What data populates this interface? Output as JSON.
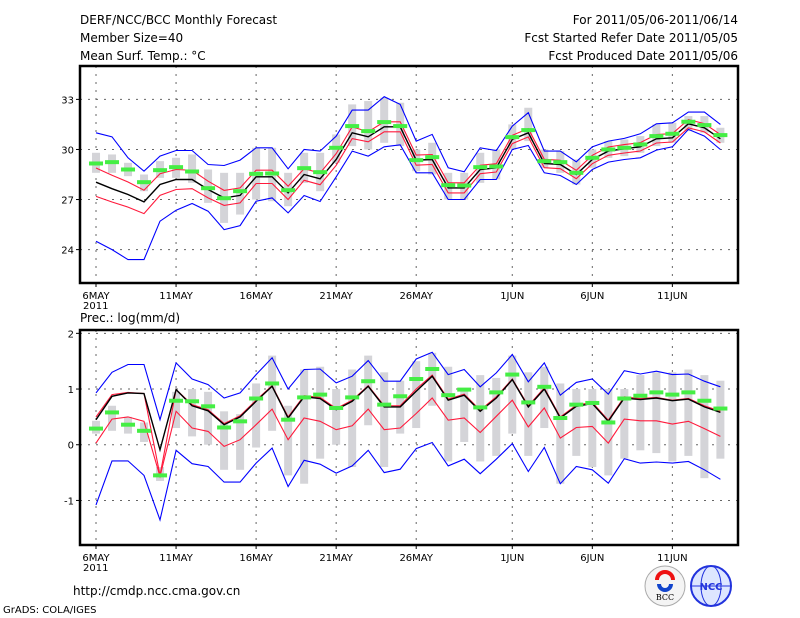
{
  "header": {
    "title": "DERF/NCC/BCC Monthly Forecast",
    "member_size": "Member Size=40",
    "variable": "Mean Surf. Temp.: °C",
    "period": "For 2011/05/06-2011/06/14",
    "started": "Fcst Started Refer Date 2011/05/05",
    "produced": "Fcst Produced Date 2011/05/06"
  },
  "footer": {
    "url": "http://cmdp.ncc.cma.gov.cn",
    "credit": "GrADS: COLA/IGES",
    "logo_bcc": "BCC",
    "logo_ncc": "NCC"
  },
  "colors": {
    "outer": "#0000ff",
    "inner": "#ff1a3c",
    "mean": "#000000",
    "marker": "#44ee44",
    "bar": "#d4d4d8",
    "grid": "#666666"
  },
  "chart_data": [
    {
      "type": "line",
      "title": "Mean Surf. Temp.: °C",
      "ylabel": "°C",
      "ylim": [
        22,
        35
      ],
      "xlim": [
        -1,
        40.1
      ],
      "yticks": [
        24,
        27,
        30,
        33
      ],
      "grid": true,
      "x_ticks": [
        {
          "day": 0,
          "label": "6MAY",
          "sub": "2011"
        },
        {
          "day": 5,
          "label": "11MAY"
        },
        {
          "day": 10,
          "label": "16MAY"
        },
        {
          "day": 15,
          "label": "21MAY"
        },
        {
          "day": 20,
          "label": "26MAY"
        },
        {
          "day": 26,
          "label": "1JUN"
        },
        {
          "day": 31,
          "label": "6JUN"
        },
        {
          "day": 36,
          "label": "11JUN"
        }
      ],
      "bars_hi": [
        29.8,
        29.7,
        29.2,
        28.5,
        29.3,
        29.5,
        29.7,
        28.8,
        28.6,
        28.6,
        30.1,
        30.1,
        28.6,
        29.8,
        29.8,
        30.9,
        32.7,
        32.9,
        33.1,
        32.8,
        30.0,
        30.4,
        28.6,
        28.6,
        29.8,
        30.0,
        31.5,
        32.5,
        30.0,
        29.9,
        29.4,
        30.0,
        30.5,
        30.6,
        30.8,
        31.5,
        31.6,
        32.0,
        32.0,
        31.3
      ],
      "bars_lo": [
        28.6,
        28.6,
        28.4,
        27.5,
        28.3,
        28.3,
        28.0,
        26.8,
        25.6,
        26.1,
        27.0,
        26.9,
        26.6,
        28.0,
        27.5,
        29.2,
        30.2,
        30.0,
        30.4,
        30.2,
        28.7,
        28.5,
        27.0,
        27.0,
        28.0,
        28.2,
        30.0,
        30.5,
        28.9,
        28.6,
        27.9,
        28.9,
        29.5,
        29.6,
        29.8,
        30.2,
        30.4,
        31.1,
        31.0,
        30.4
      ],
      "markers": [
        29.16,
        29.24,
        28.8,
        28.04,
        28.76,
        28.94,
        28.68,
        27.68,
        27.08,
        27.5,
        28.54,
        28.56,
        27.56,
        28.88,
        28.64,
        30.1,
        31.4,
        31.1,
        31.64,
        31.4,
        29.36,
        29.54,
        27.86,
        27.84,
        28.94,
        28.98,
        30.74,
        31.16,
        29.3,
        29.24,
        28.6,
        29.5,
        30.0,
        30.1,
        30.3,
        30.8,
        30.94,
        31.66,
        31.46,
        30.86
      ],
      "series": [
        {
          "name": "outer-upper",
          "color": "#0000ff",
          "values": [
            31.0,
            30.76,
            29.5,
            28.7,
            29.6,
            29.94,
            29.94,
            29.1,
            29.04,
            29.36,
            30.1,
            30.1,
            28.84,
            30.0,
            29.9,
            30.8,
            32.36,
            32.36,
            33.16,
            32.7,
            30.5,
            30.9,
            28.9,
            28.66,
            30.1,
            29.94,
            31.4,
            32.2,
            29.9,
            29.9,
            29.26,
            30.16,
            30.5,
            30.66,
            30.94,
            31.54,
            31.6,
            32.24,
            32.24,
            31.5
          ]
        },
        {
          "name": "outer-lower",
          "color": "#0000ff",
          "values": [
            24.5,
            24.0,
            23.4,
            23.4,
            25.7,
            26.36,
            26.76,
            26.3,
            25.2,
            25.44,
            26.9,
            27.1,
            26.2,
            27.24,
            26.88,
            28.36,
            29.9,
            29.6,
            30.16,
            30.28,
            28.6,
            28.6,
            27.0,
            27.0,
            28.2,
            28.2,
            30.0,
            30.24,
            28.6,
            28.44,
            27.9,
            28.8,
            29.24,
            29.4,
            29.5,
            29.96,
            30.16,
            31.2,
            30.8,
            30.0
          ]
        },
        {
          "name": "inner-upper",
          "color": "#ff1a3c",
          "values": [
            28.89,
            28.45,
            28.05,
            27.56,
            28.55,
            28.8,
            28.75,
            28.1,
            27.55,
            27.7,
            28.76,
            28.76,
            27.8,
            28.85,
            28.59,
            29.75,
            31.35,
            31.06,
            31.66,
            31.66,
            29.66,
            29.7,
            28.0,
            28.0,
            29.05,
            29.15,
            30.85,
            31.25,
            29.41,
            29.35,
            28.75,
            29.65,
            30.15,
            30.29,
            30.41,
            30.89,
            30.95,
            31.79,
            31.55,
            30.89
          ]
        },
        {
          "name": "inner-lower",
          "color": "#ff1a3c",
          "values": [
            27.19,
            26.85,
            26.55,
            26.16,
            27.25,
            27.6,
            27.65,
            27.1,
            26.65,
            26.8,
            27.96,
            27.96,
            27.0,
            28.15,
            27.89,
            29.05,
            30.65,
            30.46,
            31.06,
            31.06,
            29.06,
            29.1,
            27.4,
            27.4,
            28.55,
            28.65,
            30.35,
            30.75,
            28.91,
            28.85,
            28.25,
            29.15,
            29.65,
            29.79,
            29.91,
            30.39,
            30.45,
            31.29,
            31.05,
            30.39
          ]
        },
        {
          "name": "ensemble-mean",
          "color": "#000000",
          "values": [
            28.04,
            27.65,
            27.3,
            26.86,
            27.9,
            28.2,
            28.2,
            27.6,
            27.1,
            27.25,
            28.36,
            28.36,
            27.4,
            28.5,
            28.24,
            29.4,
            31.0,
            30.76,
            31.36,
            31.36,
            29.36,
            29.4,
            27.7,
            27.7,
            28.8,
            28.9,
            30.6,
            31.0,
            29.16,
            29.1,
            28.5,
            29.4,
            29.9,
            30.04,
            30.16,
            30.64,
            30.7,
            31.54,
            31.3,
            30.64
          ]
        }
      ]
    },
    {
      "type": "line",
      "title": "Prec.: log(mm/d)",
      "ylabel": "log(mm/d)",
      "ylim": [
        -1.8,
        2.06
      ],
      "xlim": [
        -1,
        40.1
      ],
      "yticks": [
        -1,
        0,
        1,
        2
      ],
      "grid": true,
      "x_ticks": [
        {
          "day": 0,
          "label": "6MAY",
          "sub": "2011"
        },
        {
          "day": 5,
          "label": "11MAY"
        },
        {
          "day": 10,
          "label": "16MAY"
        },
        {
          "day": 15,
          "label": "21MAY"
        },
        {
          "day": 20,
          "label": "26MAY"
        },
        {
          "day": 26,
          "label": "1JUN"
        },
        {
          "day": 31,
          "label": "6JUN"
        },
        {
          "day": 36,
          "label": "11JUN"
        }
      ],
      "bars_hi": [
        0.43,
        0.7,
        0.5,
        0.4,
        -0.4,
        0.95,
        1.0,
        0.95,
        0.6,
        0.55,
        1.1,
        1.6,
        0.7,
        1.35,
        1.4,
        1.0,
        1.35,
        1.6,
        1.3,
        1.15,
        1.5,
        1.65,
        1.4,
        1.0,
        1.25,
        1.2,
        1.6,
        1.3,
        1.4,
        1.1,
        1.0,
        1.0,
        1.0,
        1.0,
        1.25,
        1.3,
        1.3,
        1.35,
        1.25,
        1.15
      ],
      "bars_lo": [
        0.2,
        0.25,
        0.2,
        0.05,
        -0.65,
        0.3,
        0.15,
        0.0,
        -0.45,
        -0.45,
        -0.05,
        0.25,
        -0.55,
        -0.7,
        -0.25,
        0.0,
        -0.4,
        0.35,
        -0.4,
        0.2,
        0.3,
        0.7,
        -0.3,
        0.05,
        -0.3,
        -0.2,
        0.2,
        -0.2,
        0.3,
        -0.7,
        -0.2,
        -0.4,
        -0.55,
        -0.25,
        -0.1,
        -0.15,
        -0.3,
        -0.2,
        -0.6,
        -0.25
      ],
      "markers": [
        0.29,
        0.58,
        0.36,
        0.25,
        -0.55,
        0.79,
        0.78,
        0.69,
        0.31,
        0.42,
        0.83,
        1.1,
        0.45,
        0.85,
        0.9,
        0.66,
        0.85,
        1.14,
        0.72,
        0.87,
        1.18,
        1.36,
        0.89,
        0.99,
        0.67,
        0.94,
        1.26,
        0.76,
        1.04,
        0.48,
        0.72,
        0.75,
        0.4,
        0.83,
        0.88,
        0.94,
        0.9,
        0.94,
        0.79,
        0.65
      ],
      "series": [
        {
          "name": "outer-upper",
          "color": "#0000ff",
          "values": [
            0.93,
            1.3,
            1.44,
            1.44,
            0.45,
            1.47,
            1.18,
            1.08,
            0.84,
            0.93,
            1.26,
            1.56,
            1.0,
            1.35,
            1.36,
            1.11,
            1.23,
            1.51,
            1.14,
            1.14,
            1.54,
            1.66,
            1.26,
            1.35,
            1.04,
            1.29,
            1.62,
            1.13,
            1.47,
            0.89,
            1.12,
            1.18,
            0.91,
            1.33,
            1.27,
            1.32,
            1.26,
            1.27,
            1.14,
            1.04
          ]
        },
        {
          "name": "outer-lower",
          "color": "#0000ff",
          "values": [
            -1.08,
            -0.29,
            -0.29,
            -0.55,
            -1.35,
            -0.1,
            -0.34,
            -0.39,
            -0.67,
            -0.67,
            -0.33,
            -0.06,
            -0.75,
            -0.28,
            -0.35,
            -0.51,
            -0.38,
            -0.1,
            -0.5,
            -0.44,
            -0.07,
            0.04,
            -0.38,
            -0.26,
            -0.52,
            -0.26,
            0.02,
            -0.48,
            -0.05,
            -0.7,
            -0.39,
            -0.45,
            -0.69,
            -0.25,
            -0.33,
            -0.31,
            -0.33,
            -0.3,
            -0.45,
            -0.62
          ]
        },
        {
          "name": "inner-upper",
          "color": "#ff1a3c",
          "values": [
            0.5,
            0.9,
            0.94,
            0.92,
            -0.55,
            0.99,
            0.72,
            0.63,
            0.38,
            0.52,
            0.8,
            1.06,
            0.5,
            0.88,
            0.85,
            0.65,
            0.8,
            1.06,
            0.7,
            0.7,
            1.0,
            1.25,
            0.82,
            0.91,
            0.62,
            0.86,
            1.18,
            0.7,
            1.02,
            0.5,
            0.71,
            0.76,
            0.44,
            0.86,
            0.83,
            0.85,
            0.8,
            0.83,
            0.7,
            0.6
          ]
        },
        {
          "name": "inner-lower",
          "color": "#ff1a3c",
          "values": [
            0.03,
            0.46,
            0.5,
            0.42,
            -0.57,
            0.6,
            0.3,
            0.24,
            -0.03,
            0.09,
            0.36,
            0.64,
            0.09,
            0.48,
            0.42,
            0.27,
            0.34,
            0.64,
            0.27,
            0.3,
            0.56,
            0.84,
            0.44,
            0.48,
            0.22,
            0.51,
            0.8,
            0.32,
            0.66,
            0.12,
            0.31,
            0.33,
            0.03,
            0.46,
            0.43,
            0.43,
            0.37,
            0.42,
            0.29,
            0.15
          ]
        },
        {
          "name": "ensemble-mean",
          "color": "#000000",
          "values": [
            0.45,
            0.87,
            0.93,
            0.92,
            -0.09,
            0.99,
            0.7,
            0.61,
            0.36,
            0.5,
            0.78,
            1.05,
            0.48,
            0.86,
            0.83,
            0.63,
            0.78,
            1.05,
            0.68,
            0.68,
            0.96,
            1.23,
            0.8,
            0.89,
            0.6,
            0.84,
            1.17,
            0.68,
            1.0,
            0.48,
            0.69,
            0.74,
            0.42,
            0.84,
            0.81,
            0.84,
            0.79,
            0.82,
            0.68,
            0.58
          ]
        }
      ]
    }
  ]
}
